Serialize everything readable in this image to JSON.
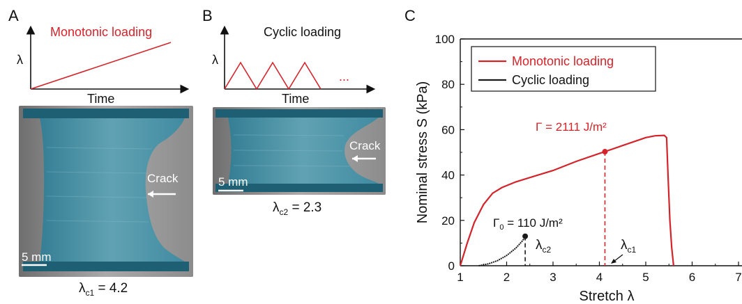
{
  "panel_a": {
    "letter": "A",
    "title": "Monotonic loading",
    "y_symbol": "λ",
    "x_label": "Time",
    "photo": {
      "crack_label": "Crack",
      "scale_label": "5 mm"
    },
    "caption": {
      "symbol": "λ",
      "subscript": "c1",
      "value": " = 4.2"
    }
  },
  "panel_b": {
    "letter": "B",
    "title": "Cyclic loading",
    "y_symbol": "λ",
    "x_label": "Time",
    "ellipsis": "...",
    "photo": {
      "crack_label": "Crack",
      "scale_label": "5 mm"
    },
    "caption": {
      "symbol": "λ",
      "subscript": "c2",
      "value": " = 2.3"
    }
  },
  "panel_c": {
    "letter": "C",
    "annotations": {
      "gamma_mono": "Γ = 2111 J/m²",
      "gamma0_prefix": "Γ",
      "gamma0_sub": "0",
      "gamma0_suffix": " = 110 J/m²",
      "lambda_c1_symbol": "λ",
      "lambda_c1_sub": "c1",
      "lambda_c2_symbol": "λ",
      "lambda_c2_sub": "c2"
    }
  },
  "colors": {
    "monotonic": "#d4242b",
    "cyclic": "#1a1a1a",
    "gel_blue": "#3d8fa6"
  },
  "chart_data": {
    "type": "line",
    "title": "",
    "xlabel": "Stretch λ",
    "ylabel": "Nominal stress S (kPa)",
    "xlim": [
      1,
      7
    ],
    "ylim": [
      0,
      100
    ],
    "xticks": [
      1,
      2,
      3,
      4,
      5,
      6,
      7
    ],
    "yticks": [
      0,
      20,
      40,
      60,
      80,
      100
    ],
    "legend": "top-left",
    "series": [
      {
        "name": "Monotonic loading",
        "color": "#d4242b",
        "x": [
          1.0,
          1.15,
          1.3,
          1.5,
          1.7,
          1.9,
          2.2,
          2.6,
          3.0,
          3.5,
          4.0,
          4.12,
          4.5,
          5.0,
          5.2,
          5.4,
          5.45,
          5.48,
          5.52,
          5.56,
          5.6
        ],
        "y": [
          0,
          10,
          19,
          27,
          32,
          34.5,
          37,
          39.5,
          42,
          46,
          49.5,
          50.3,
          53,
          56.5,
          57.3,
          57.5,
          56.5,
          40,
          20,
          8,
          0
        ]
      },
      {
        "name": "Cyclic loading",
        "color": "#1a1a1a",
        "x": [
          1.4,
          1.6,
          1.8,
          2.0,
          2.2,
          2.35,
          2.4
        ],
        "y": [
          0,
          0.8,
          2.2,
          4.5,
          7.8,
          11.2,
          13
        ]
      }
    ],
    "markers": [
      {
        "series": "Monotonic loading",
        "x": 4.12,
        "y": 50.3,
        "label": "Γ = 2111 J/m²"
      },
      {
        "series": "Cyclic loading",
        "x": 2.4,
        "y": 13,
        "label": "Γ0 = 110 J/m²"
      }
    ],
    "dashed_drops": [
      {
        "x": 4.12,
        "label": "λc1"
      },
      {
        "x": 2.4,
        "label": "λc2"
      }
    ]
  }
}
